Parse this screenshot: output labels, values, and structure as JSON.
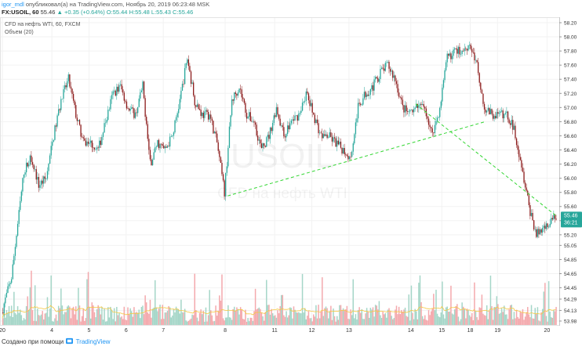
{
  "header": {
    "author": "igor_mdl",
    "published_text": "опубликовал(а) на TradingView.com, Ноябрь 20, 2019 06:23:48 MSK",
    "symbol": "FX:USOIL, 60",
    "last": "55.46",
    "change": "▲ +0.35 (+0.64%)",
    "ohlc": "O:55.44 H:55.48 L:55.43 C:55.46"
  },
  "legend": {
    "title": "CFD на нефть WTI, 60, FXCM",
    "volume": "Объем (20)"
  },
  "watermark": {
    "symbol": "USOIL",
    "name": "CFD на нефть WTI"
  },
  "price_label": {
    "price": "55.46",
    "countdown": "36:21"
  },
  "footer": {
    "text": "Создано при помощи",
    "brand": "TradingView"
  },
  "colors": {
    "up": "#26a69a",
    "down": "#8b1a1a",
    "vol_up": "#a5d6c8",
    "vol_down": "#f4a9ad",
    "trend": "#33d633",
    "ma": "#f5c842"
  },
  "chart_data": {
    "type": "candlestick",
    "y_axis": {
      "min": 53.98,
      "max": 58.2,
      "ticks": [
        58.2,
        58.0,
        57.8,
        57.6,
        57.4,
        57.2,
        57.0,
        56.8,
        56.6,
        56.4,
        56.2,
        56.0,
        55.8,
        55.6,
        55.4,
        55.2,
        55.05,
        54.85,
        54.65,
        54.45,
        54.29,
        54.13,
        53.98
      ]
    },
    "x_axis": {
      "labels": [
        "20",
        "4",
        "5",
        "6",
        "7",
        "8",
        "11",
        "12",
        "13",
        "14",
        "15",
        "18",
        "19",
        "20"
      ]
    },
    "path": [
      [
        0,
        54.1
      ],
      [
        8,
        54.6
      ],
      [
        14,
        55.5
      ],
      [
        18,
        56.1
      ],
      [
        24,
        56.3
      ],
      [
        30,
        55.9
      ],
      [
        36,
        56.0
      ],
      [
        42,
        56.6
      ],
      [
        48,
        57.1
      ],
      [
        54,
        57.4
      ],
      [
        60,
        56.9
      ],
      [
        66,
        56.5
      ],
      [
        72,
        56.5
      ],
      [
        78,
        56.4
      ],
      [
        84,
        56.8
      ],
      [
        90,
        57.2
      ],
      [
        96,
        57.3
      ],
      [
        102,
        57.0
      ],
      [
        108,
        56.9
      ],
      [
        114,
        57.3
      ],
      [
        120,
        56.2
      ],
      [
        126,
        56.5
      ],
      [
        132,
        56.4
      ],
      [
        138,
        56.6
      ],
      [
        144,
        57.1
      ],
      [
        150,
        57.7
      ],
      [
        156,
        57.1
      ],
      [
        162,
        56.9
      ],
      [
        168,
        56.9
      ],
      [
        174,
        56.5
      ],
      [
        180,
        55.8
      ],
      [
        186,
        57.1
      ],
      [
        192,
        57.3
      ],
      [
        198,
        56.9
      ],
      [
        204,
        56.8
      ],
      [
        210,
        56.4
      ],
      [
        216,
        56.6
      ],
      [
        222,
        57.0
      ],
      [
        228,
        56.6
      ],
      [
        234,
        56.8
      ],
      [
        240,
        56.9
      ],
      [
        246,
        57.2
      ],
      [
        252,
        56.9
      ],
      [
        258,
        56.6
      ],
      [
        264,
        56.6
      ],
      [
        270,
        56.5
      ],
      [
        276,
        56.4
      ],
      [
        282,
        56.3
      ],
      [
        288,
        57.0
      ],
      [
        294,
        57.2
      ],
      [
        300,
        57.3
      ],
      [
        306,
        57.5
      ],
      [
        312,
        57.6
      ],
      [
        318,
        57.4
      ],
      [
        324,
        57.0
      ],
      [
        330,
        56.9
      ],
      [
        336,
        57.0
      ],
      [
        342,
        57.0
      ],
      [
        348,
        56.6
      ],
      [
        354,
        57.0
      ],
      [
        360,
        57.7
      ],
      [
        366,
        57.8
      ],
      [
        372,
        57.8
      ],
      [
        378,
        57.9
      ],
      [
        384,
        57.6
      ],
      [
        390,
        57.0
      ],
      [
        396,
        56.9
      ],
      [
        402,
        56.9
      ],
      [
        408,
        56.9
      ],
      [
        414,
        56.7
      ],
      [
        420,
        56.2
      ],
      [
        426,
        55.6
      ],
      [
        432,
        55.2
      ],
      [
        438,
        55.3
      ],
      [
        444,
        55.4
      ],
      [
        448,
        55.46
      ]
    ],
    "annotations": [
      {
        "type": "trendline",
        "style": "dashed",
        "from": [
          "11",
          55.75
        ],
        "to": [
          "19",
          56.8
        ]
      },
      {
        "type": "trendline",
        "style": "dashed",
        "from": [
          "14",
          57.05
        ],
        "to": [
          "20",
          55.46
        ]
      }
    ]
  }
}
